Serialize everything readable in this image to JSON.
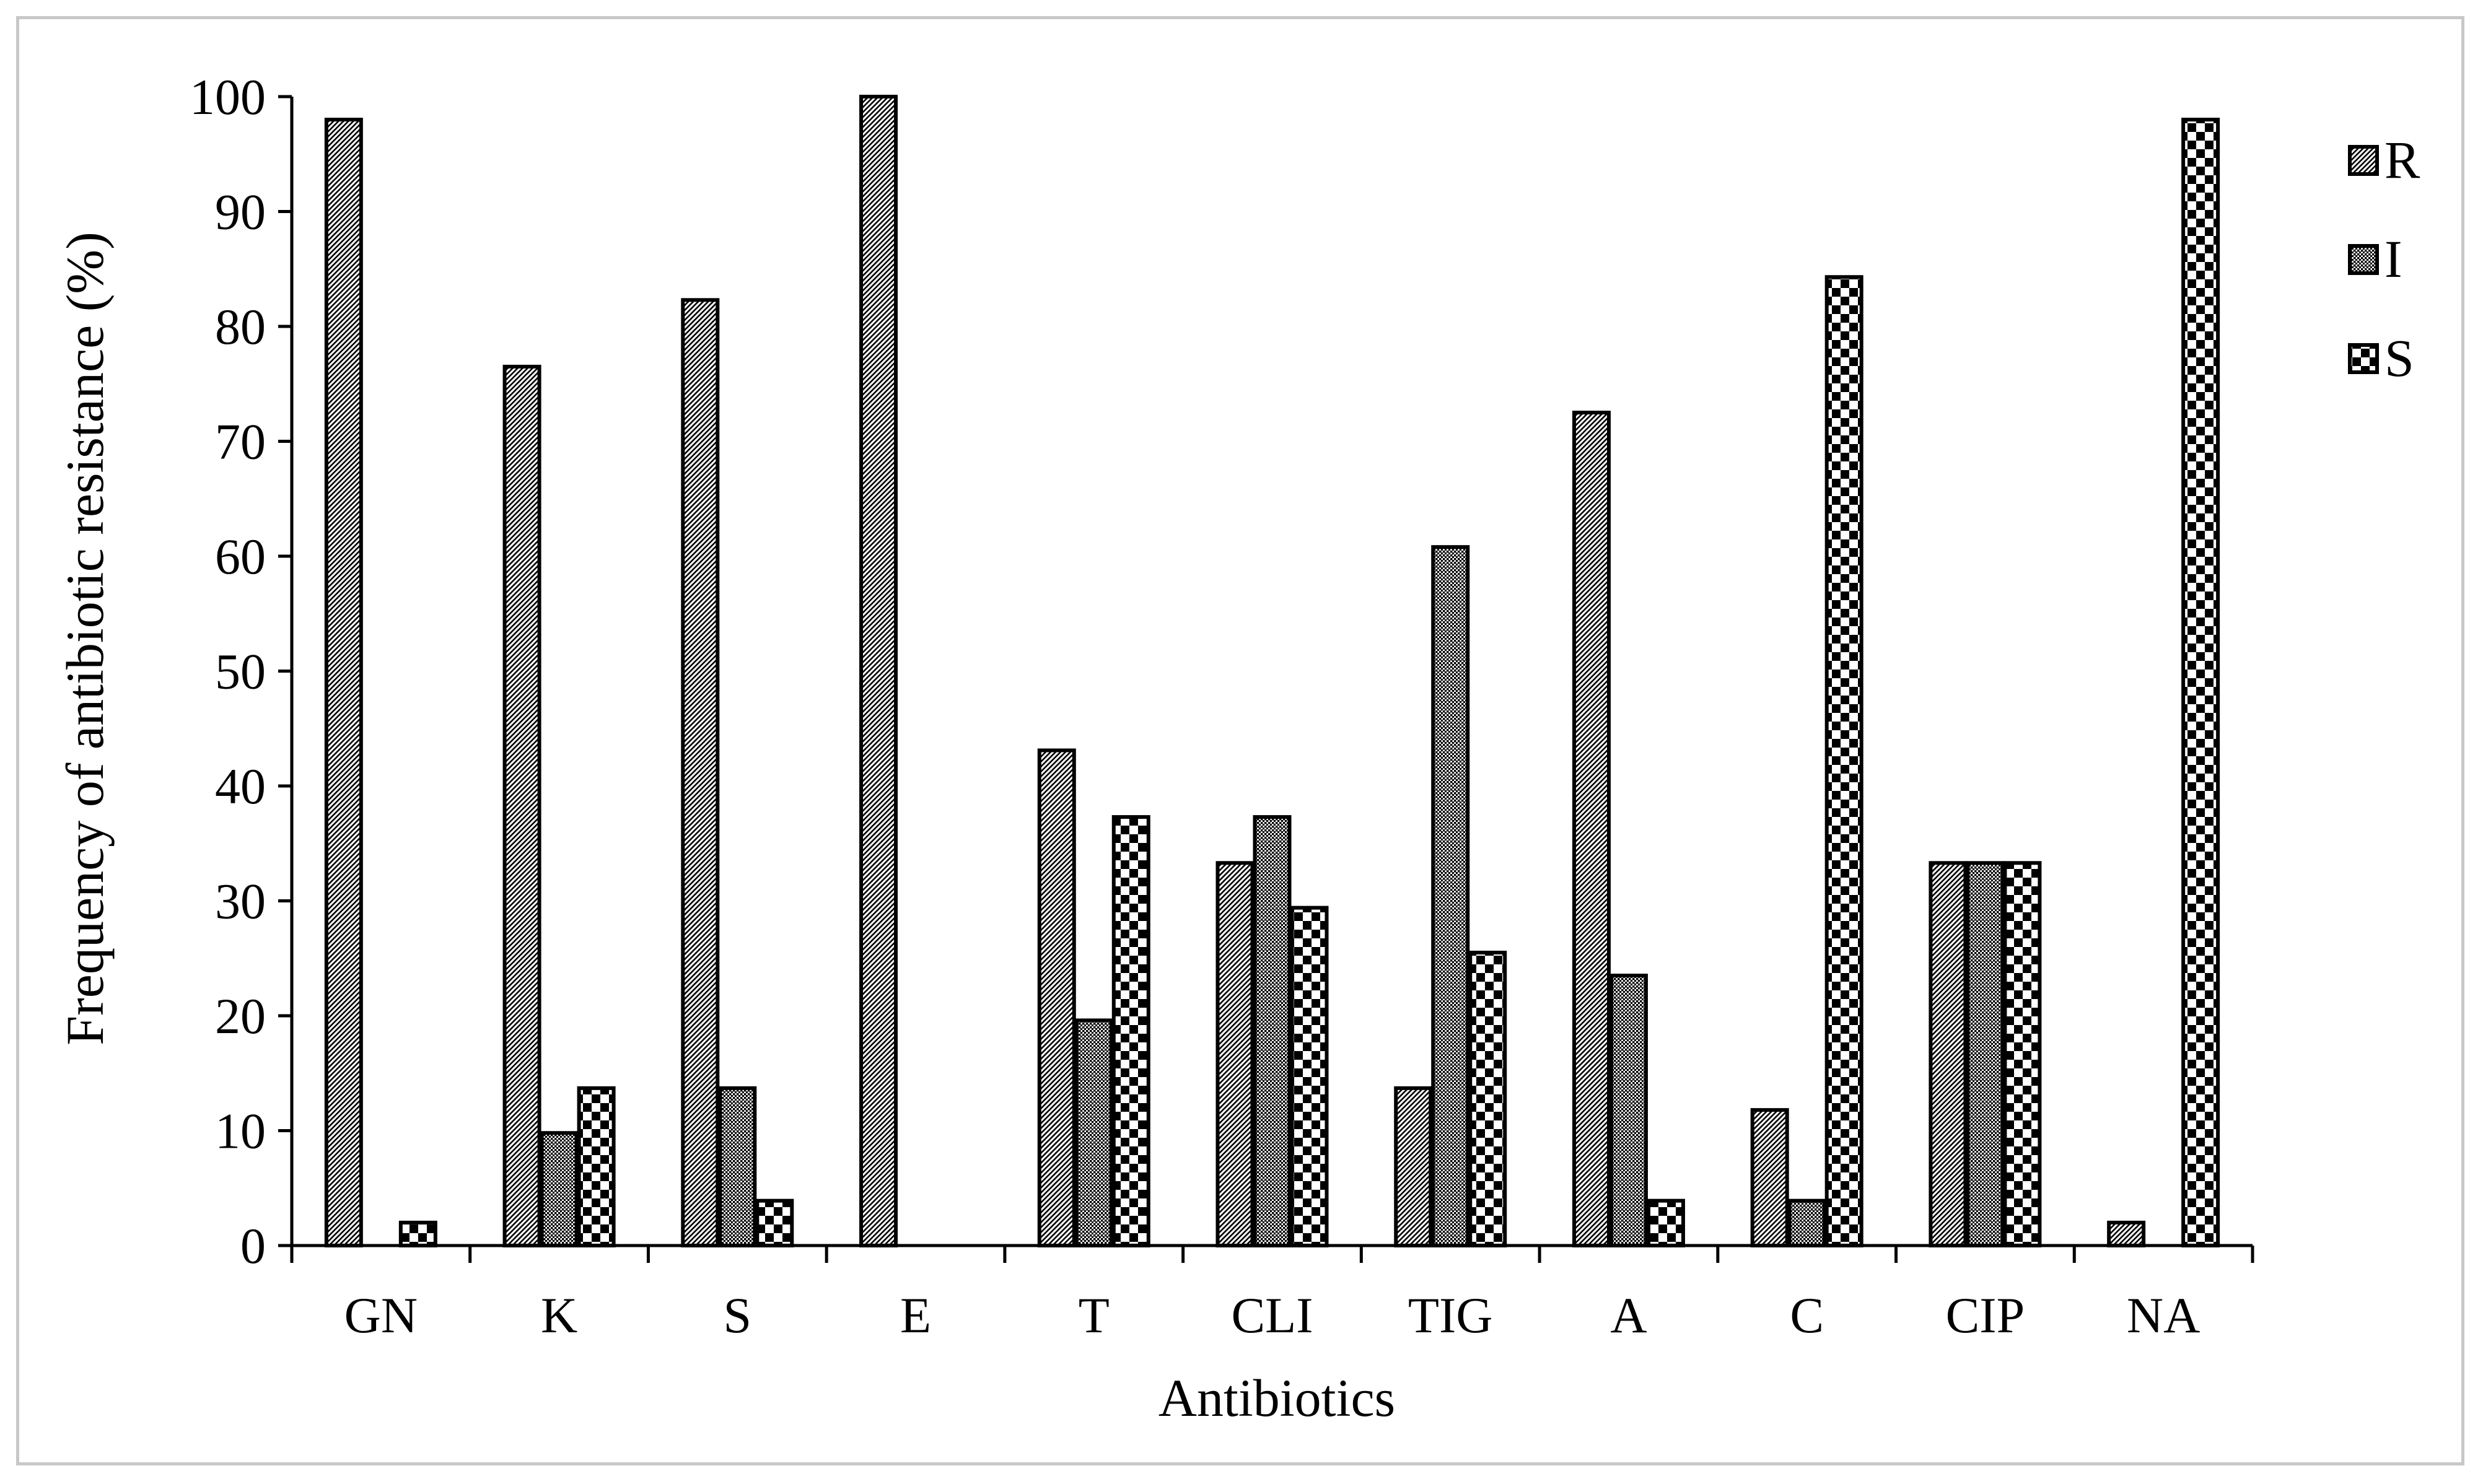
{
  "chart_data": {
    "type": "bar",
    "title": "",
    "xlabel": "Antibiotics",
    "ylabel": "Frequency of antibiotic resistance (%)",
    "ylim": [
      0,
      100
    ],
    "yticks": [
      0,
      10,
      20,
      30,
      40,
      50,
      60,
      70,
      80,
      90,
      100
    ],
    "grid": false,
    "legend_position": "top-right",
    "categories": [
      "GN",
      "K",
      "S",
      "E",
      "T",
      "CLI",
      "TIG",
      "A",
      "C",
      "CIP",
      "NA"
    ],
    "series": [
      {
        "name": "R",
        "pattern": "diagonal-hatch",
        "values": [
          98,
          76.5,
          82.3,
          100,
          43.1,
          33.3,
          13.7,
          72.5,
          11.8,
          33.3,
          2
        ]
      },
      {
        "name": "I",
        "pattern": "dense-dots",
        "values": [
          0,
          9.8,
          13.7,
          0,
          19.6,
          37.3,
          60.8,
          23.5,
          3.9,
          33.3,
          0
        ]
      },
      {
        "name": "S",
        "pattern": "checkerboard",
        "values": [
          2,
          13.7,
          3.9,
          0,
          37.3,
          29.4,
          25.5,
          3.9,
          84.3,
          33.3,
          98
        ]
      }
    ]
  }
}
